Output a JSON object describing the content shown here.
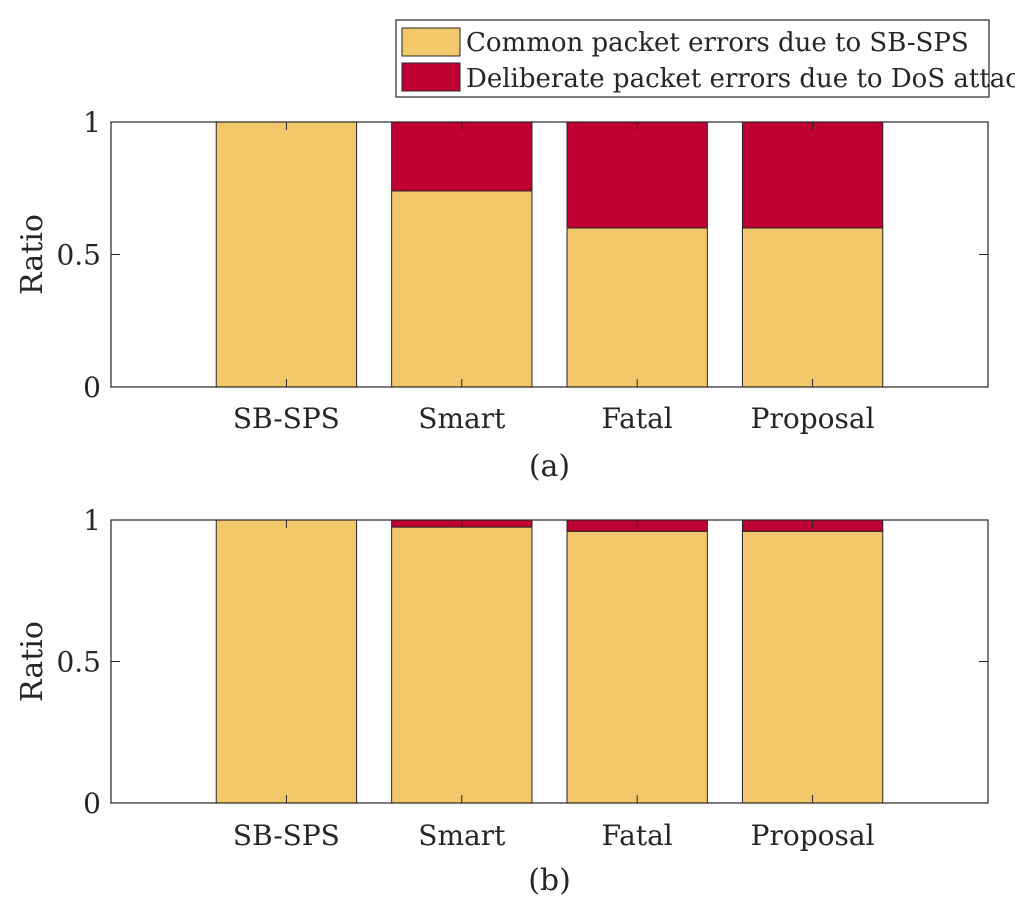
{
  "legend": {
    "items": [
      {
        "label": "Common packet errors due to SB-SPS",
        "color": "#F3C86A"
      },
      {
        "label": "Deliberate packet errors due to DoS attack",
        "color": "#C00033"
      }
    ],
    "placement": "top-right, outside panel (a)"
  },
  "chart_data": [
    {
      "type": "bar",
      "stacked": true,
      "caption": "(a)",
      "ylabel": "Ratio",
      "xlabel": "",
      "categories": [
        "SB-SPS",
        "Smart",
        "Fatal",
        "Proposal"
      ],
      "ylim": [
        0,
        1
      ],
      "yticks": [
        0,
        0.5,
        1
      ],
      "ytick_labels": [
        "0",
        "0.5",
        "1"
      ],
      "grid": false,
      "series": [
        {
          "name": "Common packet errors due to SB-SPS",
          "color": "#F3C86A",
          "values": [
            1.0,
            0.74,
            0.6,
            0.6
          ]
        },
        {
          "name": "Deliberate packet errors due to DoS attack",
          "color": "#C00033",
          "values": [
            0.0,
            0.26,
            0.4,
            0.4
          ]
        }
      ]
    },
    {
      "type": "bar",
      "stacked": true,
      "caption": "(b)",
      "ylabel": "Ratio",
      "xlabel": "",
      "categories": [
        "SB-SPS",
        "Smart",
        "Fatal",
        "Proposal"
      ],
      "ylim": [
        0,
        1
      ],
      "yticks": [
        0,
        0.5,
        1
      ],
      "ytick_labels": [
        "0",
        "0.5",
        "1"
      ],
      "grid": false,
      "series": [
        {
          "name": "Common packet errors due to SB-SPS",
          "color": "#F3C86A",
          "values": [
            1.0,
            0.975,
            0.96,
            0.96
          ]
        },
        {
          "name": "Deliberate packet errors due to DoS attack",
          "color": "#C00033",
          "values": [
            0.0,
            0.025,
            0.04,
            0.04
          ]
        }
      ]
    }
  ]
}
